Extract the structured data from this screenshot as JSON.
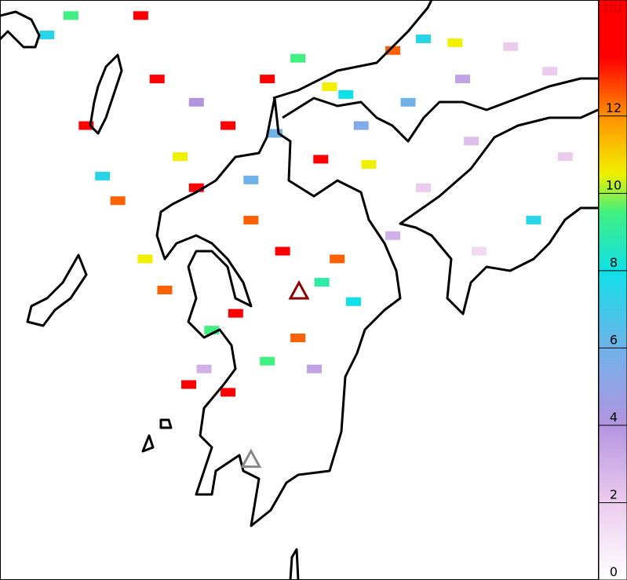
{
  "map": {
    "lonlim": [
      128.36,
      133.84
    ],
    "latlim": [
      30.65,
      35.13
    ]
  },
  "colorbar": {
    "label": "DU",
    "lim": [
      0,
      15
    ],
    "ticks": [
      0,
      2,
      4,
      6,
      8,
      10,
      12
    ],
    "colormap": [
      {
        "value": 0,
        "color": "#ffffff"
      },
      {
        "value": 2,
        "color": "#ecccee"
      },
      {
        "value": 4,
        "color": "#b394e0"
      },
      {
        "value": 6,
        "color": "#6fb2e8"
      },
      {
        "value": 8,
        "color": "#10e0e8"
      },
      {
        "value": 9.5,
        "color": "#40f080"
      },
      {
        "value": 10.5,
        "color": "#f0f000"
      },
      {
        "value": 12,
        "color": "#ff9000"
      },
      {
        "value": 13.5,
        "color": "#ff0000"
      },
      {
        "value": 15,
        "color": "#ff0000"
      }
    ]
  },
  "pixels": [
    {
      "lon": 131.3,
      "lat": 33.9,
      "du": 14
    },
    {
      "lon": 130.81,
      "lat": 34.52,
      "du": 14
    },
    {
      "lon": 130.45,
      "lat": 34.16,
      "du": 13.5
    },
    {
      "lon": 131.09,
      "lat": 34.68,
      "du": 9.5
    },
    {
      "lon": 131.53,
      "lat": 34.4,
      "du": 8
    },
    {
      "lon": 131.74,
      "lat": 33.86,
      "du": 10.5
    },
    {
      "lon": 129.8,
      "lat": 34.52,
      "du": 14
    },
    {
      "lon": 129.3,
      "lat": 33.77,
      "du": 7.5
    },
    {
      "lon": 130.16,
      "lat": 33.68,
      "du": 14
    },
    {
      "lon": 130.66,
      "lat": 33.43,
      "du": 12.5
    },
    {
      "lon": 130.95,
      "lat": 33.19,
      "du": 14
    },
    {
      "lon": 131.31,
      "lat": 32.95,
      "du": 9
    },
    {
      "lon": 131.45,
      "lat": 33.13,
      "du": 12.5
    },
    {
      "lon": 131.6,
      "lat": 32.8,
      "du": 8
    },
    {
      "lon": 130.52,
      "lat": 32.71,
      "du": 14
    },
    {
      "lon": 131.09,
      "lat": 32.52,
      "du": 12.5
    },
    {
      "lon": 130.81,
      "lat": 32.34,
      "du": 9.5
    },
    {
      "lon": 130.45,
      "lat": 32.1,
      "du": 14
    },
    {
      "lon": 130.23,
      "lat": 32.28,
      "du": 3
    },
    {
      "lon": 131.24,
      "lat": 32.28,
      "du": 3.5
    },
    {
      "lon": 131.96,
      "lat": 33.31,
      "du": 3
    },
    {
      "lon": 132.24,
      "lat": 33.68,
      "du": 2
    },
    {
      "lon": 132.68,
      "lat": 34.04,
      "du": 2.5
    },
    {
      "lon": 133.25,
      "lat": 33.43,
      "du": 7.5
    },
    {
      "lon": 133.04,
      "lat": 34.77,
      "du": 2
    },
    {
      "lon": 132.53,
      "lat": 34.8,
      "du": 10.5
    },
    {
      "lon": 131.96,
      "lat": 34.74,
      "du": 12.5
    },
    {
      "lon": 132.24,
      "lat": 34.83,
      "du": 7.5
    },
    {
      "lon": 132.6,
      "lat": 34.52,
      "du": 3.5
    },
    {
      "lon": 133.4,
      "lat": 34.58,
      "du": 2
    },
    {
      "lon": 133.54,
      "lat": 33.92,
      "du": 2
    },
    {
      "lon": 132.75,
      "lat": 33.19,
      "du": 1.5
    },
    {
      "lon": 129.65,
      "lat": 35.01,
      "du": 14
    },
    {
      "lon": 129.01,
      "lat": 35.01,
      "du": 9.5
    },
    {
      "lon": 128.79,
      "lat": 34.86,
      "du": 7.5
    },
    {
      "lon": 129.15,
      "lat": 34.16,
      "du": 14
    },
    {
      "lon": 129.44,
      "lat": 33.58,
      "du": 12.5
    },
    {
      "lon": 129.69,
      "lat": 33.13,
      "du": 10.5
    },
    {
      "lon": 129.87,
      "lat": 32.89,
      "du": 12.5
    },
    {
      "lon": 130.09,
      "lat": 32.16,
      "du": 14
    },
    {
      "lon": 130.3,
      "lat": 32.58,
      "du": 9.5
    },
    {
      "lon": 130.66,
      "lat": 33.74,
      "du": 6
    },
    {
      "lon": 130.01,
      "lat": 33.92,
      "du": 10.5
    },
    {
      "lon": 131.67,
      "lat": 34.16,
      "du": 5.5
    },
    {
      "lon": 132.1,
      "lat": 34.34,
      "du": 6
    },
    {
      "lon": 130.16,
      "lat": 34.34,
      "du": 4
    },
    {
      "lon": 131.38,
      "lat": 34.46,
      "du": 10.5
    },
    {
      "lon": 130.88,
      "lat": 34.1,
      "du": 6
    }
  ],
  "volcanoes": [
    {
      "lon": 131.1,
      "lat": 32.88,
      "color": "#8b0000"
    },
    {
      "lon": 130.66,
      "lat": 31.58,
      "color": "#888888"
    }
  ]
}
